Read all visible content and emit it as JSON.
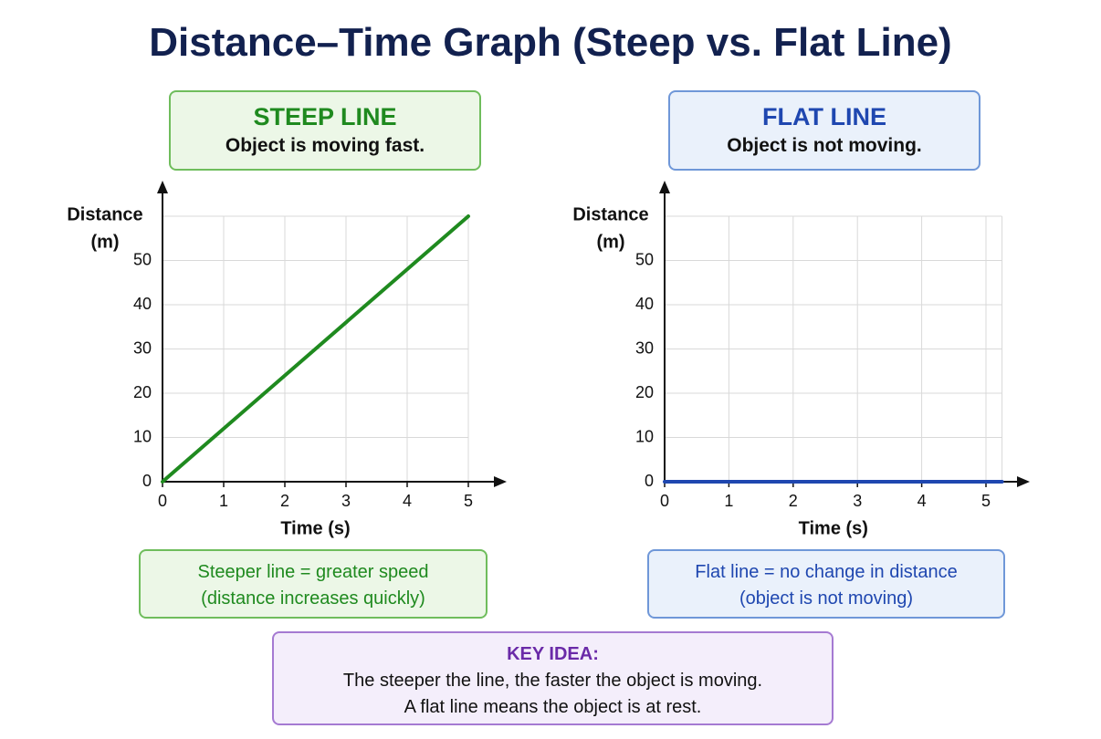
{
  "title": "Distance–Time Graph (Steep vs. Flat Line)",
  "chart_data": [
    {
      "type": "line",
      "title": "STEEP LINE",
      "subtitle": "Object is moving fast.",
      "ylabel": [
        "Distance",
        "(m)"
      ],
      "xlabel": "Time (s)",
      "x": [
        0,
        5
      ],
      "values": [
        0,
        60
      ],
      "color": "#1f8a1f",
      "xlim": [
        0,
        5
      ],
      "xticks": [
        0,
        1,
        2,
        3,
        4,
        5
      ],
      "ylim": [
        0,
        60
      ],
      "yticks": [
        0,
        10,
        20,
        30,
        40,
        50
      ],
      "grid": true,
      "annotations": [
        "Steeper line = greater speed",
        "(distance increases quickly)"
      ]
    },
    {
      "type": "line",
      "title": "FLAT LINE",
      "subtitle": "Object is not moving.",
      "ylabel": [
        "Distance",
        "(m)"
      ],
      "xlabel": "Time (s)",
      "x": [
        0,
        5.25
      ],
      "values": [
        0,
        0
      ],
      "color": "#1f47b0",
      "xlim": [
        0,
        5.25
      ],
      "xticks": [
        0,
        1,
        2,
        3,
        4,
        5
      ],
      "ylim": [
        0,
        60
      ],
      "yticks": [
        0,
        10,
        20,
        30,
        40,
        50
      ],
      "grid": true,
      "annotations": [
        "Flat line = no change in distance",
        "(object is not moving)"
      ]
    }
  ],
  "key_idea": {
    "title": "KEY IDEA:",
    "lines": [
      "The steeper the line, the faster the object is moving.",
      "A flat line means the object is at rest."
    ]
  }
}
